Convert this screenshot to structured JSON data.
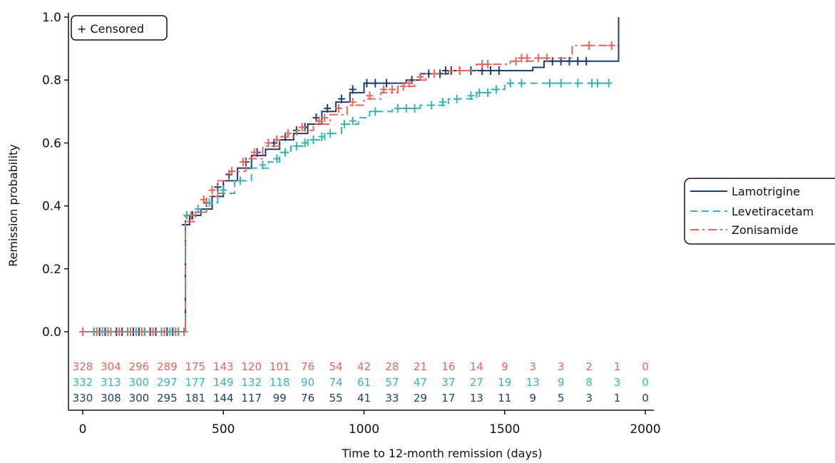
{
  "chart_data": {
    "type": "line",
    "subtype": "kaplan-meier",
    "title": "",
    "xlabel": "Time to 12-month remission (days)",
    "ylabel": "Remission probability",
    "xlim": [
      0,
      2000
    ],
    "ylim": [
      0,
      1.0
    ],
    "xticks": [
      0,
      500,
      1000,
      1500,
      2000
    ],
    "yticks": [
      "0.0",
      "0.2",
      "0.4",
      "0.6",
      "0.8",
      "1.0"
    ],
    "grid": false,
    "censor_legend": "+ Censored",
    "legend_position": "right",
    "series": [
      {
        "name": "Lamotrigine",
        "color": "#1f3f73",
        "dash": "solid",
        "steps": [
          [
            0,
            0
          ],
          [
            360,
            0
          ],
          [
            365,
            0.34
          ],
          [
            380,
            0.37
          ],
          [
            420,
            0.39
          ],
          [
            460,
            0.43
          ],
          [
            500,
            0.48
          ],
          [
            550,
            0.52
          ],
          [
            600,
            0.56
          ],
          [
            650,
            0.58
          ],
          [
            700,
            0.61
          ],
          [
            750,
            0.63
          ],
          [
            800,
            0.66
          ],
          [
            850,
            0.7
          ],
          [
            900,
            0.73
          ],
          [
            950,
            0.76
          ],
          [
            1000,
            0.79
          ],
          [
            1150,
            0.8
          ],
          [
            1200,
            0.82
          ],
          [
            1300,
            0.83
          ],
          [
            1600,
            0.84
          ],
          [
            1640,
            0.86
          ],
          [
            1900,
            0.86
          ],
          [
            1905,
            1.0
          ]
        ],
        "censored": [
          [
            40,
            0
          ],
          [
            60,
            0
          ],
          [
            80,
            0
          ],
          [
            100,
            0
          ],
          [
            120,
            0
          ],
          [
            140,
            0
          ],
          [
            160,
            0
          ],
          [
            180,
            0
          ],
          [
            200,
            0
          ],
          [
            220,
            0
          ],
          [
            240,
            0
          ],
          [
            260,
            0
          ],
          [
            280,
            0
          ],
          [
            300,
            0
          ],
          [
            320,
            0
          ],
          [
            340,
            0
          ],
          [
            365,
            0.34
          ],
          [
            390,
            0.37
          ],
          [
            440,
            0.41
          ],
          [
            480,
            0.46
          ],
          [
            520,
            0.5
          ],
          [
            580,
            0.54
          ],
          [
            620,
            0.57
          ],
          [
            680,
            0.6
          ],
          [
            720,
            0.62
          ],
          [
            760,
            0.64
          ],
          [
            790,
            0.65
          ],
          [
            830,
            0.68
          ],
          [
            870,
            0.71
          ],
          [
            920,
            0.74
          ],
          [
            960,
            0.77
          ],
          [
            1010,
            0.79
          ],
          [
            1040,
            0.79
          ],
          [
            1080,
            0.79
          ],
          [
            1170,
            0.8
          ],
          [
            1230,
            0.82
          ],
          [
            1270,
            0.82
          ],
          [
            1290,
            0.83
          ],
          [
            1310,
            0.83
          ],
          [
            1340,
            0.83
          ],
          [
            1380,
            0.83
          ],
          [
            1420,
            0.83
          ],
          [
            1450,
            0.83
          ],
          [
            1480,
            0.83
          ],
          [
            1670,
            0.86
          ],
          [
            1700,
            0.86
          ],
          [
            1730,
            0.86
          ],
          [
            1760,
            0.86
          ],
          [
            1790,
            0.86
          ]
        ]
      },
      {
        "name": "Levetiracetam",
        "color": "#36b3b7",
        "dash": "long",
        "steps": [
          [
            0,
            0
          ],
          [
            360,
            0
          ],
          [
            365,
            0.37
          ],
          [
            400,
            0.38
          ],
          [
            440,
            0.41
          ],
          [
            480,
            0.44
          ],
          [
            540,
            0.48
          ],
          [
            600,
            0.52
          ],
          [
            660,
            0.54
          ],
          [
            700,
            0.57
          ],
          [
            740,
            0.59
          ],
          [
            800,
            0.61
          ],
          [
            860,
            0.63
          ],
          [
            920,
            0.66
          ],
          [
            980,
            0.68
          ],
          [
            1020,
            0.7
          ],
          [
            1100,
            0.71
          ],
          [
            1200,
            0.72
          ],
          [
            1300,
            0.74
          ],
          [
            1400,
            0.76
          ],
          [
            1450,
            0.77
          ],
          [
            1500,
            0.79
          ],
          [
            1870,
            0.79
          ]
        ],
        "censored": [
          [
            40,
            0
          ],
          [
            70,
            0
          ],
          [
            100,
            0
          ],
          [
            130,
            0
          ],
          [
            160,
            0
          ],
          [
            190,
            0
          ],
          [
            220,
            0
          ],
          [
            250,
            0
          ],
          [
            280,
            0
          ],
          [
            310,
            0
          ],
          [
            340,
            0
          ],
          [
            370,
            0.37
          ],
          [
            410,
            0.39
          ],
          [
            450,
            0.41
          ],
          [
            500,
            0.45
          ],
          [
            560,
            0.48
          ],
          [
            640,
            0.53
          ],
          [
            690,
            0.55
          ],
          [
            720,
            0.57
          ],
          [
            760,
            0.59
          ],
          [
            790,
            0.6
          ],
          [
            820,
            0.61
          ],
          [
            850,
            0.62
          ],
          [
            880,
            0.63
          ],
          [
            930,
            0.66
          ],
          [
            960,
            0.67
          ],
          [
            1040,
            0.7
          ],
          [
            1120,
            0.71
          ],
          [
            1150,
            0.71
          ],
          [
            1180,
            0.71
          ],
          [
            1240,
            0.72
          ],
          [
            1280,
            0.73
          ],
          [
            1330,
            0.74
          ],
          [
            1380,
            0.75
          ],
          [
            1410,
            0.76
          ],
          [
            1440,
            0.76
          ],
          [
            1470,
            0.77
          ],
          [
            1520,
            0.79
          ],
          [
            1560,
            0.79
          ],
          [
            1660,
            0.79
          ],
          [
            1700,
            0.79
          ],
          [
            1760,
            0.79
          ],
          [
            1810,
            0.79
          ],
          [
            1830,
            0.79
          ],
          [
            1870,
            0.79
          ]
        ]
      },
      {
        "name": "Zonisamide",
        "color": "#e8655b",
        "dash": "dashdot",
        "steps": [
          [
            0,
            0
          ],
          [
            360,
            0
          ],
          [
            365,
            0.35
          ],
          [
            400,
            0.38
          ],
          [
            440,
            0.43
          ],
          [
            480,
            0.48
          ],
          [
            520,
            0.51
          ],
          [
            580,
            0.55
          ],
          [
            640,
            0.59
          ],
          [
            700,
            0.62
          ],
          [
            760,
            0.64
          ],
          [
            820,
            0.66
          ],
          [
            880,
            0.69
          ],
          [
            940,
            0.72
          ],
          [
            1000,
            0.74
          ],
          [
            1060,
            0.76
          ],
          [
            1120,
            0.78
          ],
          [
            1180,
            0.8
          ],
          [
            1220,
            0.82
          ],
          [
            1300,
            0.83
          ],
          [
            1400,
            0.85
          ],
          [
            1520,
            0.86
          ],
          [
            1600,
            0.87
          ],
          [
            1740,
            0.91
          ],
          [
            1900,
            0.91
          ]
        ],
        "censored": [
          [
            0,
            0
          ],
          [
            50,
            0
          ],
          [
            90,
            0
          ],
          [
            130,
            0
          ],
          [
            170,
            0
          ],
          [
            210,
            0
          ],
          [
            250,
            0
          ],
          [
            290,
            0
          ],
          [
            330,
            0
          ],
          [
            360,
            0
          ],
          [
            385,
            0.37
          ],
          [
            430,
            0.42
          ],
          [
            460,
            0.45
          ],
          [
            530,
            0.51
          ],
          [
            570,
            0.54
          ],
          [
            610,
            0.57
          ],
          [
            660,
            0.6
          ],
          [
            690,
            0.61
          ],
          [
            730,
            0.63
          ],
          [
            780,
            0.65
          ],
          [
            840,
            0.67
          ],
          [
            860,
            0.68
          ],
          [
            910,
            0.71
          ],
          [
            960,
            0.73
          ],
          [
            1020,
            0.75
          ],
          [
            1070,
            0.77
          ],
          [
            1100,
            0.77
          ],
          [
            1140,
            0.78
          ],
          [
            1160,
            0.79
          ],
          [
            1200,
            0.81
          ],
          [
            1250,
            0.82
          ],
          [
            1340,
            0.83
          ],
          [
            1420,
            0.85
          ],
          [
            1440,
            0.85
          ],
          [
            1540,
            0.86
          ],
          [
            1560,
            0.87
          ],
          [
            1580,
            0.87
          ],
          [
            1620,
            0.87
          ],
          [
            1650,
            0.87
          ],
          [
            1800,
            0.91
          ],
          [
            1880,
            0.91
          ]
        ]
      }
    ],
    "risk_table": {
      "times": [
        0,
        100,
        200,
        300,
        400,
        500,
        600,
        700,
        800,
        900,
        1000,
        1100,
        1200,
        1300,
        1400,
        1500,
        1600,
        1700,
        1800,
        1900,
        2000
      ],
      "rows": [
        {
          "name": "Zonisamide",
          "color": "#e8655b",
          "values": [
            "328",
            "304",
            "296",
            "289",
            "175",
            "143",
            "120",
            "101",
            "76",
            "54",
            "42",
            "28",
            "21",
            "16",
            "14",
            "9",
            "3",
            "3",
            "2",
            "1",
            "0"
          ]
        },
        {
          "name": "Levetiracetam",
          "color": "#36b3b7",
          "values": [
            "332",
            "313",
            "300",
            "297",
            "177",
            "149",
            "132",
            "118",
            "90",
            "74",
            "61",
            "57",
            "47",
            "37",
            "27",
            "19",
            "13",
            "9",
            "8",
            "3",
            "0"
          ]
        },
        {
          "name": "Lamotrigine",
          "color": "#1f3f73",
          "values": [
            "330",
            "308",
            "300",
            "295",
            "181",
            "144",
            "117",
            "99",
            "76",
            "55",
            "41",
            "33",
            "29",
            "17",
            "13",
            "11",
            "9",
            "5",
            "3",
            "1",
            "0"
          ]
        }
      ]
    }
  }
}
